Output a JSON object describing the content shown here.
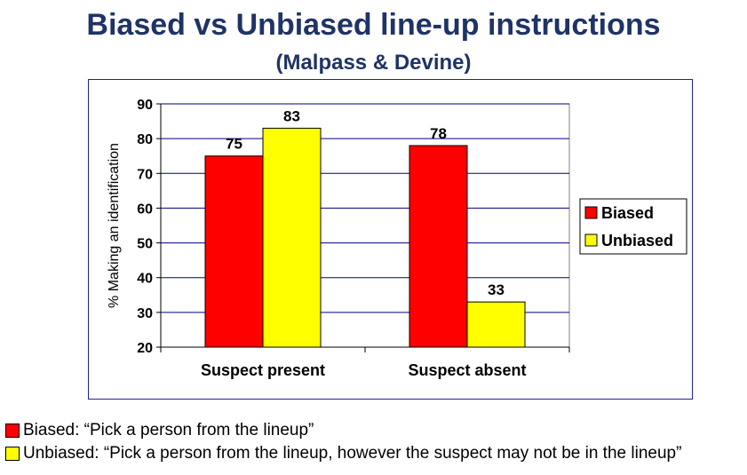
{
  "title": "Biased vs Unbiased line-up instructions",
  "subtitle": "(Malpass & Devine)",
  "notes": [
    {
      "text": "Biased: “Pick a person from the lineup”",
      "color": "#ff0000"
    },
    {
      "text": "Unbiased: “Pick a person from the lineup, however the suspect may not be in the lineup”",
      "color": "#ffff00"
    }
  ],
  "chart_data": {
    "type": "bar",
    "categories": [
      "Suspect present",
      "Suspect absent"
    ],
    "series": [
      {
        "name": "Biased",
        "values": [
          75,
          78
        ],
        "color": "#ff0000"
      },
      {
        "name": "Unbiased",
        "values": [
          83,
          33
        ],
        "color": "#ffff00"
      }
    ],
    "ylabel": "% Making an identification",
    "xlabel": "",
    "ylim": [
      20,
      90
    ],
    "yticks": [
      20,
      30,
      40,
      50,
      60,
      70,
      80,
      90
    ],
    "grid": true,
    "gridline_color": "#000080",
    "legend": "right",
    "data_labels": true
  }
}
